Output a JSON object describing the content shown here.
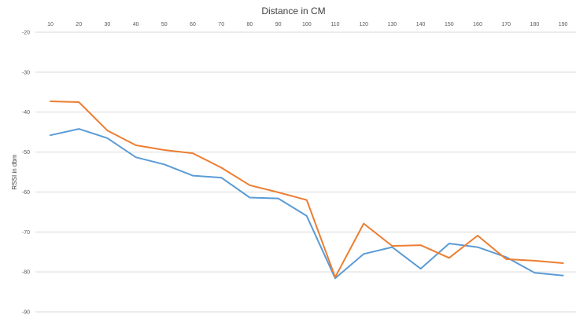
{
  "chart_data": {
    "type": "line",
    "title": "Distance in CM",
    "xlabel": "",
    "ylabel": "RSSI in  dbm",
    "x": [
      10,
      20,
      30,
      40,
      50,
      60,
      70,
      80,
      90,
      100,
      110,
      120,
      130,
      140,
      150,
      160,
      170,
      180,
      190
    ],
    "ylim": [
      -90,
      -20
    ],
    "y_ticks": [
      -20,
      -30,
      -40,
      -50,
      -60,
      -70,
      -80,
      -90
    ],
    "x_axis_position": "top",
    "grid": true,
    "series": [
      {
        "color": "#5b9bd5",
        "values": [
          -45.8,
          -44.2,
          -46.5,
          -51.3,
          -53.1,
          -55.9,
          -56.4,
          -61.4,
          -61.6,
          -66.0,
          -81.6,
          -75.5,
          -73.8,
          -79.2,
          -72.9,
          -73.8,
          -76.3,
          -80.2,
          -80.9
        ]
      },
      {
        "color": "#ed7d31",
        "values": [
          -37.3,
          -37.5,
          -44.6,
          -48.3,
          -49.5,
          -50.3,
          -53.9,
          -58.3,
          -60.1,
          -62.0,
          -81.3,
          -67.9,
          -73.5,
          -73.3,
          -76.5,
          -70.9,
          -76.8,
          -77.2,
          -77.8
        ]
      }
    ]
  }
}
